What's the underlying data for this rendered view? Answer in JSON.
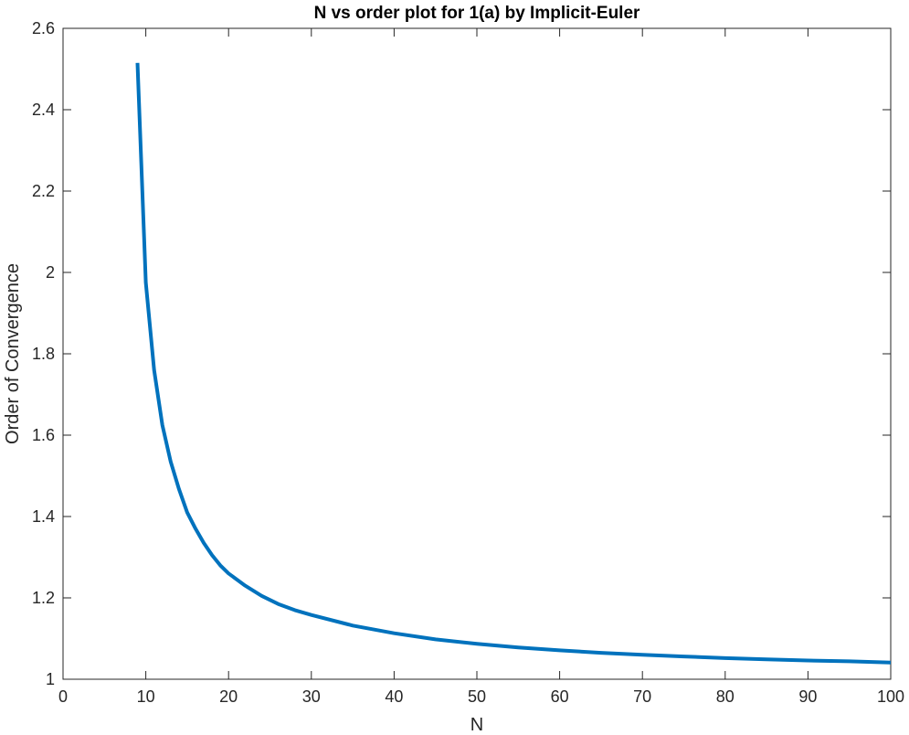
{
  "chart_data": {
    "type": "line",
    "title": "N vs order plot for 1(a) by Implicit-Euler",
    "xlabel": "N",
    "ylabel": "Order of Convergence",
    "xlim": [
      0,
      100
    ],
    "ylim": [
      1,
      2.6
    ],
    "xticks": [
      0,
      10,
      20,
      30,
      40,
      50,
      60,
      70,
      80,
      90,
      100
    ],
    "yticks": [
      1,
      1.2,
      1.4,
      1.6,
      1.8,
      2,
      2.2,
      2.4,
      2.6
    ],
    "xtick_labels": [
      "0",
      "10",
      "20",
      "30",
      "40",
      "50",
      "60",
      "70",
      "80",
      "90",
      "100"
    ],
    "ytick_labels": [
      "1",
      "1.2",
      "1.4",
      "1.6",
      "1.8",
      "2",
      "2.2",
      "2.4",
      "2.6"
    ],
    "grid": false,
    "series": [
      {
        "color": "#0072BD",
        "x": [
          9,
          10,
          11,
          12,
          13,
          14,
          15,
          16,
          17,
          18,
          19,
          20,
          22,
          24,
          26,
          28,
          30,
          35,
          40,
          45,
          50,
          55,
          60,
          65,
          70,
          75,
          80,
          85,
          90,
          95,
          100
        ],
        "y": [
          2.515,
          1.975,
          1.76,
          1.625,
          1.535,
          1.468,
          1.41,
          1.37,
          1.335,
          1.305,
          1.28,
          1.26,
          1.23,
          1.205,
          1.185,
          1.17,
          1.158,
          1.132,
          1.113,
          1.098,
          1.087,
          1.078,
          1.071,
          1.065,
          1.06,
          1.056,
          1.052,
          1.049,
          1.046,
          1.044,
          1.041
        ]
      }
    ]
  }
}
